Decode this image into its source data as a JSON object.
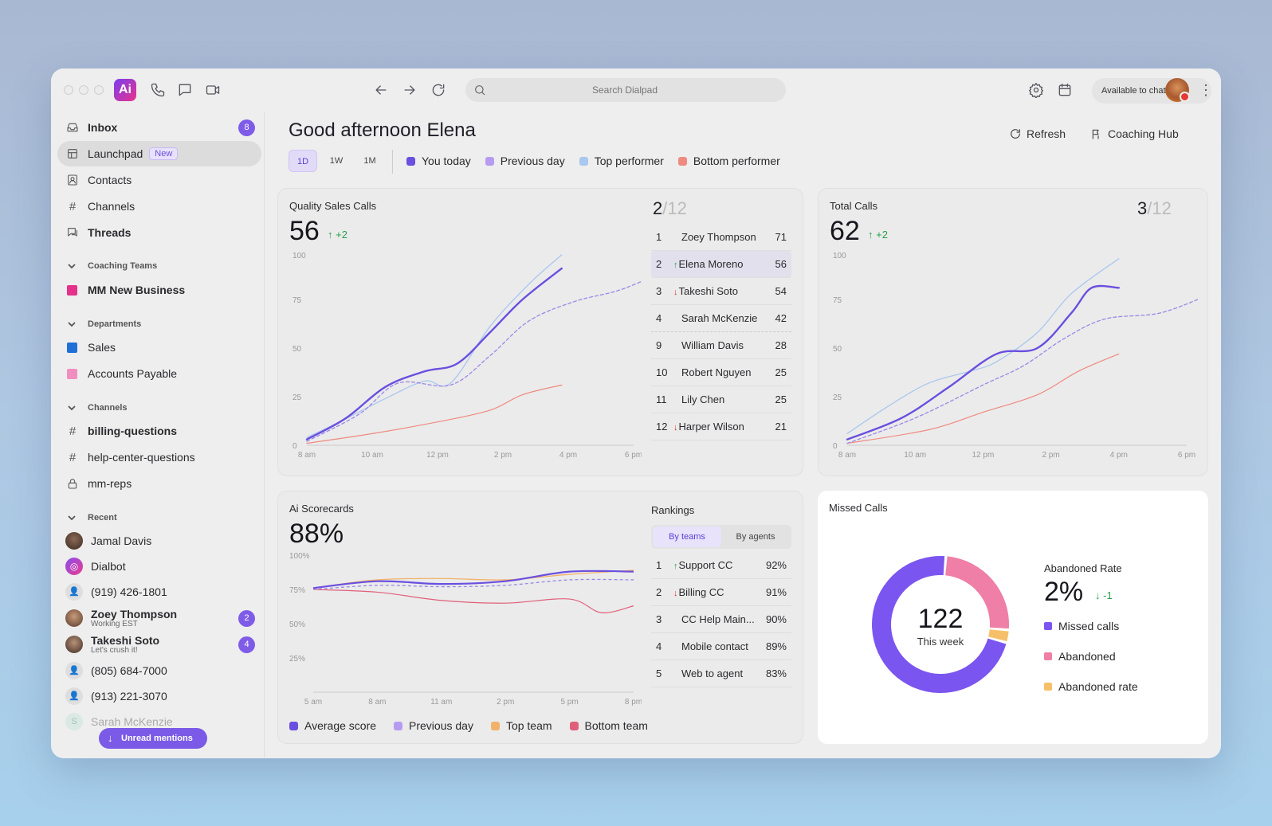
{
  "titlebar": {
    "logo_text": "Ai",
    "search_placeholder": "Search Dialpad",
    "availability": "Available to chat"
  },
  "sidebar": {
    "top": [
      {
        "label": "Inbox",
        "badge": "8",
        "icon": "inbox-icon"
      },
      {
        "label": "Launchpad",
        "tag": "New",
        "icon": "launchpad-icon"
      },
      {
        "label": "Contacts",
        "icon": "contacts-icon"
      },
      {
        "label": "Channels",
        "icon": "hash-icon"
      },
      {
        "label": "Threads",
        "icon": "threads-icon"
      }
    ],
    "coaching_header": "Coaching Teams",
    "coaching": [
      {
        "label": "MM New Business",
        "color": "#e5318b"
      }
    ],
    "departments_header": "Departments",
    "departments": [
      {
        "label": "Sales",
        "color": "#1f6fd6"
      },
      {
        "label": "Accounts Payable",
        "color": "#f08fbf"
      }
    ],
    "channels_header": "Channels",
    "channels": [
      {
        "label": "billing-questions"
      },
      {
        "label": "help-center-questions"
      },
      {
        "label": "mm-reps"
      }
    ],
    "recent_header": "Recent",
    "recent": [
      {
        "label": "Jamal Davis"
      },
      {
        "label": "Dialbot"
      },
      {
        "label": "(919) 426-1801"
      },
      {
        "label": "Zoey Thompson",
        "sub": "Working EST",
        "badge": "2"
      },
      {
        "label": "Takeshi Soto",
        "sub": "Let's crush it!",
        "badge": "4"
      },
      {
        "label": "(805) 684-7000"
      },
      {
        "label": "(913) 221-3070"
      },
      {
        "label": "Sarah McKenzie"
      }
    ],
    "unread": "Unread mentions"
  },
  "header": {
    "greeting": "Good afternoon Elena",
    "tabs": [
      "1D",
      "1W",
      "1M"
    ],
    "legend": [
      {
        "label": "You today",
        "color": "#6a4fe0"
      },
      {
        "label": "Previous day",
        "color": "#b69cf0"
      },
      {
        "label": "Top performer",
        "color": "#a9c7ef"
      },
      {
        "label": "Bottom performer",
        "color": "#ef8a80"
      }
    ],
    "refresh": "Refresh",
    "coaching_hub": "Coaching Hub"
  },
  "quality": {
    "title": "Quality Sales Calls",
    "value": "56",
    "delta": "+2",
    "rank": "2",
    "rank_total": "/12",
    "leaderboard": [
      {
        "pos": "1",
        "name": "Zoey Thompson",
        "score": "71",
        "trend": ""
      },
      {
        "pos": "2",
        "name": "Elena Moreno",
        "score": "56",
        "trend": "up"
      },
      {
        "pos": "3",
        "name": "Takeshi Soto",
        "score": "54",
        "trend": "down"
      },
      {
        "pos": "4",
        "name": "Sarah McKenzie",
        "score": "42",
        "trend": ""
      },
      {
        "pos": "9",
        "name": "William Davis",
        "score": "28",
        "trend": ""
      },
      {
        "pos": "10",
        "name": "Robert Nguyen",
        "score": "25",
        "trend": ""
      },
      {
        "pos": "11",
        "name": "Lily Chen",
        "score": "25",
        "trend": ""
      },
      {
        "pos": "12",
        "name": "Harper Wilson",
        "score": "21",
        "trend": "down"
      }
    ]
  },
  "total": {
    "title": "Total Calls",
    "value": "62",
    "delta": "+2",
    "rank": "3",
    "rank_total": "/12"
  },
  "scorecards": {
    "title": "Ai Scorecards",
    "value": "88%",
    "rankings_title": "Rankings",
    "seg": [
      "By teams",
      "By agents"
    ],
    "rankings": [
      {
        "pos": "1",
        "name": "Support CC",
        "score": "92%",
        "trend": "up"
      },
      {
        "pos": "2",
        "name": "Billing CC",
        "score": "91%",
        "trend": "down"
      },
      {
        "pos": "3",
        "name": "CC Help Main...",
        "score": "90%",
        "trend": ""
      },
      {
        "pos": "4",
        "name": "Mobile contact",
        "score": "89%",
        "trend": ""
      },
      {
        "pos": "5",
        "name": "Web to agent",
        "score": "83%",
        "trend": ""
      }
    ],
    "legend": [
      {
        "label": "Average score",
        "color": "#6a4fe0"
      },
      {
        "label": "Previous day",
        "color": "#b69cf0"
      },
      {
        "label": "Top team",
        "color": "#f2b26a"
      },
      {
        "label": "Bottom team",
        "color": "#e0607a"
      }
    ]
  },
  "missed": {
    "title": "Missed Calls",
    "center_value": "122",
    "center_label": "This week",
    "rate_title": "Abandoned Rate",
    "rate_value": "2%",
    "rate_delta": "-1",
    "legend": [
      {
        "label": "Missed calls",
        "color": "#7b55f0"
      },
      {
        "label": "Abandoned",
        "color": "#ef7fa6"
      },
      {
        "label": "Abandoned rate",
        "color": "#f6c06a"
      }
    ]
  },
  "chart_data": [
    {
      "type": "line",
      "title": "Quality Sales Calls",
      "x": [
        "8 am",
        "10 am",
        "12 pm",
        "2 pm",
        "4 pm",
        "6 pm"
      ],
      "ylim": [
        0,
        100
      ],
      "yticks": [
        0,
        25,
        50,
        75,
        100
      ],
      "series": [
        {
          "name": "You today",
          "points": [
            [
              0,
              3
            ],
            [
              0.6,
              14
            ],
            [
              1.2,
              30
            ],
            [
              1.8,
              38
            ],
            [
              2.3,
              42
            ],
            [
              2.8,
              58
            ],
            [
              3.3,
              75
            ],
            [
              3.9,
              91
            ]
          ]
        },
        {
          "name": "Previous day",
          "points": [
            [
              0,
              2
            ],
            [
              0.8,
              16
            ],
            [
              1.4,
              32
            ],
            [
              2.2,
              31
            ],
            [
              2.8,
              46
            ],
            [
              3.4,
              64
            ],
            [
              4.1,
              74
            ],
            [
              4.8,
              80
            ],
            [
              5.5,
              90
            ]
          ]
        },
        {
          "name": "Top performer",
          "points": [
            [
              0,
              4
            ],
            [
              0.5,
              12
            ],
            [
              1.2,
              24
            ],
            [
              1.8,
              33
            ],
            [
              2.2,
              32
            ],
            [
              2.8,
              61
            ],
            [
              3.4,
              83
            ],
            [
              3.9,
              110
            ]
          ]
        },
        {
          "name": "Bottom performer",
          "points": [
            [
              0,
              1
            ],
            [
              1,
              6
            ],
            [
              2,
              12
            ],
            [
              2.8,
              18
            ],
            [
              3.3,
              26
            ],
            [
              3.9,
              31
            ]
          ]
        }
      ]
    },
    {
      "type": "line",
      "title": "Total Calls",
      "x": [
        "8 am",
        "10 am",
        "12 pm",
        "2 pm",
        "4 pm",
        "6 pm"
      ],
      "ylim": [
        0,
        100
      ],
      "yticks": [
        0,
        25,
        50,
        75,
        100
      ],
      "series": [
        {
          "name": "You today",
          "points": [
            [
              0,
              3
            ],
            [
              0.8,
              14
            ],
            [
              1.5,
              30
            ],
            [
              2.2,
              47
            ],
            [
              2.8,
              50
            ],
            [
              3.3,
              68
            ],
            [
              3.6,
              81
            ],
            [
              4,
              81
            ]
          ]
        },
        {
          "name": "Previous day",
          "points": [
            [
              0,
              1
            ],
            [
              1,
              14
            ],
            [
              2,
              31
            ],
            [
              2.6,
              41
            ],
            [
              3.2,
              55
            ],
            [
              3.8,
              65
            ],
            [
              4.6,
              68
            ],
            [
              5.3,
              77
            ]
          ]
        },
        {
          "name": "Top performer",
          "points": [
            [
              0,
              6
            ],
            [
              0.6,
              20
            ],
            [
              1.2,
              32
            ],
            [
              1.8,
              38
            ],
            [
              2.2,
              43
            ],
            [
              2.8,
              58
            ],
            [
              3.3,
              78
            ],
            [
              4,
              96
            ]
          ]
        },
        {
          "name": "Bottom performer",
          "points": [
            [
              0,
              1
            ],
            [
              1.2,
              8
            ],
            [
              2,
              17
            ],
            [
              2.8,
              26
            ],
            [
              3.4,
              38
            ],
            [
              4,
              47
            ]
          ]
        }
      ]
    },
    {
      "type": "line",
      "title": "Ai Scorecards",
      "x": [
        "5 am",
        "8 am",
        "11 am",
        "2 pm",
        "5 pm",
        "8 pm"
      ],
      "ylim": [
        0,
        100
      ],
      "yticks": [
        25,
        50,
        75,
        100
      ],
      "series": [
        {
          "name": "Average score",
          "points": [
            [
              0,
              76
            ],
            [
              1,
              81
            ],
            [
              2,
              79
            ],
            [
              3,
              81
            ],
            [
              4,
              88
            ],
            [
              5,
              88
            ]
          ]
        },
        {
          "name": "Previous day",
          "points": [
            [
              0,
              75
            ],
            [
              1,
              78
            ],
            [
              2,
              77
            ],
            [
              3,
              78
            ],
            [
              4,
              82
            ],
            [
              5,
              82
            ]
          ]
        },
        {
          "name": "Top team",
          "points": [
            [
              0,
              76
            ],
            [
              1,
              82
            ],
            [
              2,
              83
            ],
            [
              3,
              82
            ],
            [
              4,
              86
            ],
            [
              5,
              89
            ]
          ]
        },
        {
          "name": "Bottom team",
          "points": [
            [
              0,
              75
            ],
            [
              1,
              73
            ],
            [
              2,
              67
            ],
            [
              3,
              65
            ],
            [
              4,
              68
            ],
            [
              4.5,
              58
            ],
            [
              5,
              63
            ]
          ]
        }
      ]
    },
    {
      "type": "pie",
      "title": "Missed Calls",
      "categories": [
        "Missed calls",
        "Abandoned",
        "Abandoned rate"
      ],
      "values": [
        72,
        25,
        3
      ]
    }
  ]
}
